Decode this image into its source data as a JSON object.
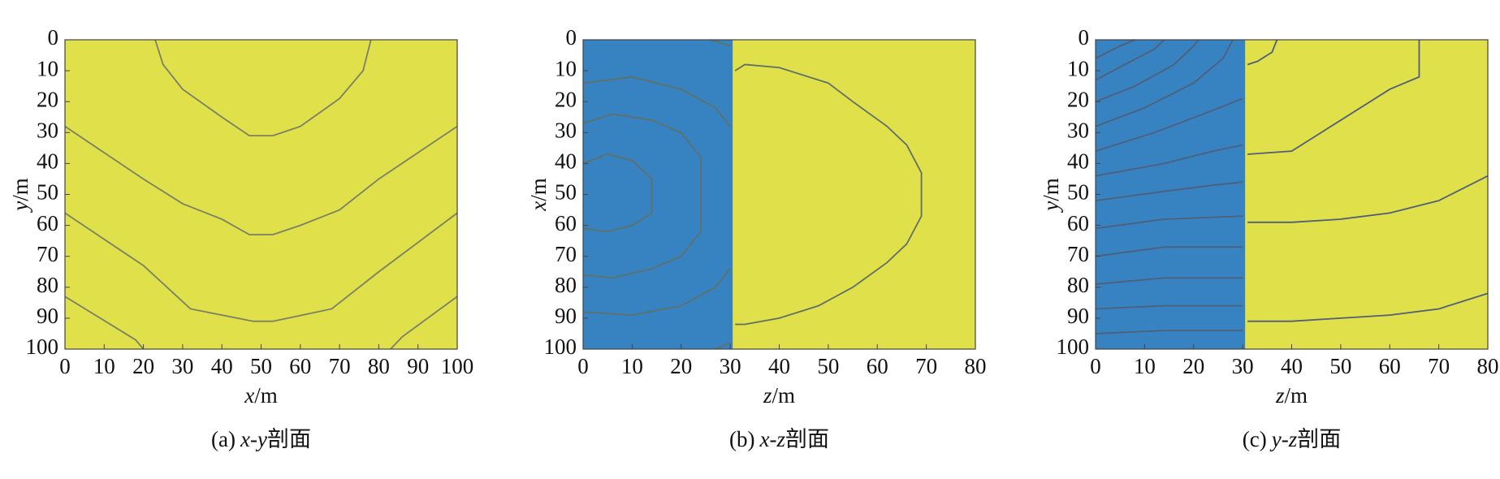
{
  "chart_data": [
    {
      "type": "contour",
      "xlabel": "x/m",
      "ylabel": "y/m",
      "caption": [
        "(a)",
        "x-y",
        "剖面"
      ],
      "xlim": [
        0,
        100
      ],
      "ylim": [
        0,
        100
      ],
      "y_reversed": true,
      "xticks": [
        0,
        10,
        20,
        30,
        40,
        50,
        60,
        70,
        80,
        90,
        100
      ],
      "yticks": [
        0,
        10,
        20,
        30,
        40,
        50,
        60,
        70,
        80,
        90,
        100
      ],
      "background": "#e0e04a",
      "line_color": "#7a8064",
      "regions": [],
      "contours": [
        {
          "x": [
            23,
            25,
            30,
            40,
            47,
            53,
            60,
            70,
            76,
            78
          ],
          "y": [
            0,
            8,
            16,
            25,
            31,
            31,
            28,
            19,
            10,
            0
          ]
        },
        {
          "x": [
            0,
            20,
            30,
            40,
            47,
            53,
            60,
            70,
            80,
            100
          ],
          "y": [
            28,
            45,
            53,
            58,
            63,
            63,
            60,
            55,
            45,
            28
          ]
        },
        {
          "x": [
            0,
            20,
            32,
            48,
            53,
            68,
            80,
            100
          ],
          "y": [
            56,
            73,
            87,
            91,
            91,
            87,
            75,
            56
          ]
        },
        {
          "x": [
            0,
            18,
            20
          ],
          "y": [
            83,
            97,
            100
          ]
        },
        {
          "x": [
            83,
            86,
            100
          ],
          "y": [
            100,
            96,
            83
          ]
        }
      ]
    },
    {
      "type": "contour",
      "xlabel": "z/m",
      "ylabel": "x/m",
      "caption": [
        "(b)",
        "x-z",
        "剖面"
      ],
      "xlim": [
        0,
        80
      ],
      "ylim": [
        0,
        100
      ],
      "y_reversed": true,
      "xticks": [
        0,
        10,
        20,
        30,
        40,
        50,
        60,
        70,
        80
      ],
      "yticks": [
        0,
        10,
        20,
        30,
        40,
        50,
        60,
        70,
        80,
        90,
        100
      ],
      "background": "#e0e04a",
      "line_color": "#5f7068",
      "regions": [
        {
          "color": "#3783c2",
          "xlim": [
            0,
            30.5
          ]
        }
      ],
      "contours": [
        {
          "x": [
            0,
            5,
            10,
            14,
            14,
            10,
            5,
            0
          ],
          "y": [
            40,
            37,
            39,
            45,
            56,
            60,
            62,
            61
          ]
        },
        {
          "x": [
            0,
            6,
            14,
            20,
            24,
            24,
            20,
            14,
            6,
            0
          ],
          "y": [
            27,
            24,
            26,
            30,
            38,
            62,
            70,
            74,
            77,
            76
          ]
        },
        {
          "x": [
            0,
            10,
            20,
            27,
            30
          ],
          "y": [
            14,
            12,
            16,
            22,
            28
          ]
        },
        {
          "x": [
            0,
            10,
            20,
            27,
            30
          ],
          "y": [
            88,
            89,
            86,
            80,
            74
          ]
        },
        {
          "x": [
            26,
            30
          ],
          "y": [
            0,
            2
          ]
        },
        {
          "x": [
            27,
            30
          ],
          "y": [
            100,
            98
          ]
        },
        {
          "x": [
            31,
            33,
            40,
            50,
            55,
            62,
            66,
            69,
            69,
            66,
            62,
            55,
            48,
            40,
            33,
            31
          ],
          "y": [
            10,
            8,
            9,
            14,
            20,
            28,
            34,
            43,
            57,
            66,
            72,
            80,
            86,
            90,
            92,
            92
          ]
        }
      ]
    },
    {
      "type": "contour",
      "xlabel": "z/m",
      "ylabel": "y/m",
      "caption": [
        "(c)",
        "y-z",
        "剖面"
      ],
      "xlim": [
        0,
        80
      ],
      "ylim": [
        0,
        100
      ],
      "y_reversed": true,
      "xticks": [
        0,
        10,
        20,
        30,
        40,
        50,
        60,
        70,
        80
      ],
      "yticks": [
        0,
        10,
        20,
        30,
        40,
        50,
        60,
        70,
        80,
        90,
        100
      ],
      "background": "#e0e04a",
      "line_color": "#4f5f78",
      "regions": [
        {
          "color": "#3783c2",
          "xlim": [
            0,
            30.5
          ]
        }
      ],
      "contours": [
        {
          "x": [
            0,
            5,
            8
          ],
          "y": [
            6,
            2,
            0
          ]
        },
        {
          "x": [
            0,
            6,
            12,
            14
          ],
          "y": [
            13,
            8,
            3,
            0
          ]
        },
        {
          "x": [
            0,
            8,
            16,
            20,
            21
          ],
          "y": [
            20,
            15,
            8,
            2,
            0
          ]
        },
        {
          "x": [
            0,
            10,
            20,
            26,
            28
          ],
          "y": [
            28,
            22,
            14,
            6,
            0
          ]
        },
        {
          "x": [
            0,
            12,
            22,
            30
          ],
          "y": [
            36,
            30,
            24,
            19
          ]
        },
        {
          "x": [
            0,
            14,
            24,
            30
          ],
          "y": [
            44,
            40,
            36,
            34
          ]
        },
        {
          "x": [
            0,
            14,
            24,
            30
          ],
          "y": [
            52,
            49,
            47,
            46
          ]
        },
        {
          "x": [
            0,
            14,
            30
          ],
          "y": [
            61,
            58,
            57
          ]
        },
        {
          "x": [
            0,
            14,
            30
          ],
          "y": [
            70,
            67,
            67
          ]
        },
        {
          "x": [
            0,
            14,
            30
          ],
          "y": [
            79,
            77,
            77
          ]
        },
        {
          "x": [
            0,
            14,
            30
          ],
          "y": [
            87,
            86,
            86
          ]
        },
        {
          "x": [
            0,
            14,
            30
          ],
          "y": [
            95,
            94,
            94
          ]
        },
        {
          "x": [
            37,
            36,
            33,
            31
          ],
          "y": [
            0,
            4,
            7,
            8
          ]
        },
        {
          "x": [
            66,
            66,
            60,
            50,
            45,
            40,
            31
          ],
          "y": [
            0,
            12,
            16,
            26,
            31,
            36,
            37
          ]
        },
        {
          "x": [
            80,
            70,
            60,
            50,
            40,
            31
          ],
          "y": [
            44,
            52,
            56,
            58,
            59,
            59
          ]
        },
        {
          "x": [
            80,
            70,
            60,
            50,
            40,
            31
          ],
          "y": [
            82,
            87,
            89,
            90,
            91,
            91
          ]
        }
      ]
    }
  ]
}
